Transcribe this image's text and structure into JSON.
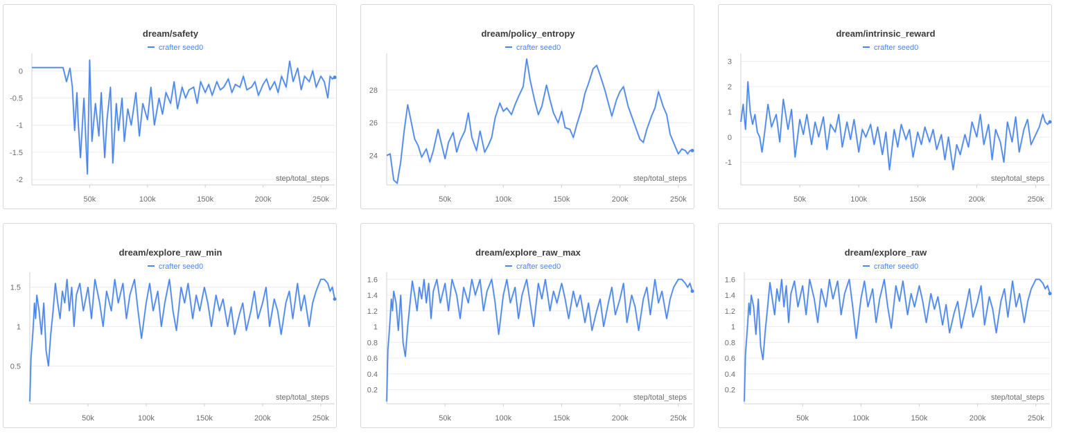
{
  "color": "#4a86e8",
  "chart_data": [
    {
      "type": "line",
      "title": "dream/safety",
      "series_name": "crafter  seed0",
      "xlabel": "step/total_steps",
      "xlim": [
        0,
        262000
      ],
      "ylim": [
        -2.1,
        0.22
      ],
      "x_ticks": [
        "50k",
        "100k",
        "150k",
        "200k",
        "250k"
      ],
      "y_ticks": [
        "0",
        "-0.5",
        "-1",
        "-1.5",
        "-2"
      ],
      "x": [
        0,
        10000,
        20000,
        27000,
        30000,
        33000,
        35000,
        37000,
        39000,
        40000,
        42000,
        45000,
        48000,
        50000,
        52000,
        55000,
        58000,
        60000,
        63000,
        65000,
        68000,
        70000,
        73000,
        75000,
        78000,
        80000,
        83000,
        86000,
        90000,
        93000,
        96000,
        100000,
        103000,
        106000,
        110000,
        113000,
        116000,
        120000,
        123000,
        126000,
        130000,
        133000,
        136000,
        140000,
        143000,
        146000,
        150000,
        153000,
        156000,
        160000,
        163000,
        166000,
        170000,
        173000,
        176000,
        180000,
        183000,
        186000,
        190000,
        193000,
        196000,
        200000,
        203000,
        206000,
        210000,
        213000,
        216000,
        220000,
        223000,
        226000,
        230000,
        233000,
        236000,
        240000,
        243000,
        246000,
        250000,
        253000,
        256000,
        258000,
        260000,
        262000
      ],
      "y": [
        0.06,
        0.06,
        0.06,
        0.06,
        -0.2,
        0.05,
        -0.3,
        -1.1,
        -0.4,
        -0.9,
        -1.6,
        -0.5,
        -1.9,
        0.2,
        -1.3,
        -0.6,
        -1.2,
        -0.4,
        -1.6,
        -0.9,
        -0.3,
        -1.7,
        -0.6,
        -1.1,
        -0.5,
        -1.3,
        -0.7,
        -1.0,
        -0.4,
        -1.2,
        -0.6,
        -0.9,
        -0.3,
        -1.0,
        -0.5,
        -0.8,
        -0.4,
        -0.6,
        -0.2,
        -0.7,
        -0.3,
        -0.5,
        -0.35,
        -0.3,
        -0.6,
        -0.2,
        -0.4,
        -0.25,
        -0.45,
        -0.2,
        -0.35,
        -0.3,
        -0.15,
        -0.4,
        -0.25,
        -0.3,
        -0.1,
        -0.35,
        -0.3,
        -0.2,
        -0.45,
        -0.25,
        -0.15,
        -0.35,
        -0.2,
        -0.4,
        -0.1,
        -0.3,
        0.18,
        -0.2,
        0.05,
        -0.35,
        -0.1,
        -0.2,
        0.0,
        -0.3,
        -0.1,
        -0.2,
        -0.5,
        -0.1,
        -0.15,
        -0.12
      ]
    },
    {
      "type": "line",
      "title": "dream/policy_entropy",
      "series_name": "crafter  seed0",
      "xlabel": "step/total_steps",
      "xlim": [
        0,
        262000
      ],
      "ylim": [
        22.2,
        29.9
      ],
      "x_ticks": [
        "50k",
        "100k",
        "150k",
        "200k",
        "250k"
      ],
      "y_ticks": [
        "24",
        "26",
        "28"
      ],
      "x": [
        0,
        3000,
        6000,
        9000,
        12000,
        15000,
        18000,
        20000,
        24000,
        27000,
        30000,
        34000,
        37000,
        40000,
        44000,
        47000,
        50000,
        53000,
        57000,
        60000,
        63000,
        67000,
        70000,
        73000,
        77000,
        80000,
        84000,
        87000,
        90000,
        93000,
        97000,
        100000,
        103000,
        107000,
        110000,
        113000,
        117000,
        120000,
        123000,
        127000,
        130000,
        133000,
        137000,
        140000,
        143000,
        147000,
        150000,
        153000,
        157000,
        160000,
        163000,
        167000,
        170000,
        173000,
        177000,
        180000,
        183000,
        187000,
        190000,
        193000,
        197000,
        200000,
        203000,
        207000,
        210000,
        213000,
        217000,
        220000,
        223000,
        227000,
        230000,
        233000,
        237000,
        240000,
        243000,
        247000,
        250000,
        253000,
        256000,
        258000,
        260000,
        262000
      ],
      "y": [
        24.0,
        24.1,
        22.5,
        22.3,
        23.6,
        25.5,
        27.1,
        26.4,
        25.0,
        24.6,
        23.9,
        24.4,
        23.6,
        24.3,
        25.6,
        24.7,
        23.8,
        24.8,
        25.4,
        24.2,
        24.9,
        25.5,
        26.6,
        25.1,
        24.3,
        25.5,
        24.2,
        24.6,
        25.1,
        26.3,
        27.2,
        26.7,
        26.9,
        26.5,
        27.1,
        27.6,
        28.2,
        29.9,
        28.6,
        27.3,
        26.5,
        27.0,
        28.3,
        27.4,
        26.6,
        26.0,
        26.7,
        25.7,
        25.6,
        25.1,
        25.9,
        26.8,
        27.8,
        28.4,
        29.3,
        29.5,
        28.9,
        28.0,
        27.2,
        26.4,
        27.4,
        27.9,
        28.2,
        27.0,
        26.4,
        25.8,
        25.0,
        24.8,
        25.6,
        26.4,
        26.9,
        27.9,
        27.0,
        26.5,
        25.3,
        24.6,
        24.1,
        24.4,
        24.3,
        24.1,
        24.3,
        24.3
      ]
    },
    {
      "type": "line",
      "title": "dream/intrinsic_reward",
      "series_name": "crafter  seed0",
      "xlabel": "step/total_steps",
      "xlim": [
        0,
        262000
      ],
      "ylim": [
        -1.9,
        3.1
      ],
      "x_ticks": [
        "50k",
        "100k",
        "150k",
        "200k",
        "250k"
      ],
      "y_ticks": [
        "3",
        "2",
        "1",
        "0",
        "-1"
      ],
      "x": [
        0,
        2000,
        4000,
        6000,
        8000,
        10000,
        12000,
        14000,
        16000,
        18000,
        20000,
        23000,
        26000,
        30000,
        33000,
        36000,
        40000,
        43000,
        46000,
        50000,
        53000,
        56000,
        60000,
        63000,
        66000,
        70000,
        73000,
        76000,
        80000,
        83000,
        86000,
        90000,
        93000,
        96000,
        100000,
        103000,
        106000,
        110000,
        113000,
        116000,
        120000,
        123000,
        126000,
        130000,
        133000,
        136000,
        140000,
        143000,
        146000,
        150000,
        153000,
        156000,
        160000,
        163000,
        166000,
        170000,
        173000,
        176000,
        180000,
        183000,
        186000,
        190000,
        193000,
        196000,
        200000,
        203000,
        206000,
        210000,
        213000,
        216000,
        220000,
        223000,
        226000,
        230000,
        233000,
        236000,
        240000,
        243000,
        246000,
        250000,
        253000,
        256000,
        258000,
        260000,
        262000
      ],
      "y": [
        0.6,
        1.3,
        0.3,
        2.2,
        1.0,
        0.5,
        0.9,
        0.2,
        0.0,
        -0.6,
        0.1,
        1.3,
        0.4,
        0.9,
        -0.2,
        1.5,
        0.3,
        1.1,
        -0.8,
        0.7,
        0.1,
        0.9,
        -0.3,
        0.6,
        0.0,
        0.8,
        -0.5,
        0.5,
        0.2,
        0.9,
        -0.4,
        0.6,
        -0.1,
        0.7,
        -0.6,
        0.3,
        0.0,
        0.5,
        -0.3,
        0.4,
        -0.7,
        0.2,
        -1.3,
        0.3,
        -0.4,
        0.5,
        -0.1,
        0.3,
        -0.8,
        0.2,
        -0.3,
        0.4,
        -0.2,
        0.3,
        -0.5,
        0.1,
        -0.9,
        0.0,
        -1.3,
        -0.3,
        -0.7,
        0.1,
        -0.4,
        0.6,
        0.0,
        0.9,
        -0.3,
        0.5,
        -0.9,
        0.3,
        -0.2,
        -1.0,
        0.6,
        -0.2,
        0.8,
        -0.6,
        0.3,
        0.7,
        -0.3,
        0.1,
        0.4,
        0.9,
        0.6,
        0.5,
        0.6
      ]
    },
    {
      "type": "line",
      "title": "dream/explore_raw_min",
      "series_name": "crafter  seed0",
      "xlabel": "step/total_steps",
      "xlim": [
        0,
        262000
      ],
      "ylim": [
        0.02,
        1.62
      ],
      "x_ticks": [
        "50k",
        "100k",
        "150k",
        "200k",
        "250k"
      ],
      "y_ticks": [
        "1.5",
        "1",
        "0.5"
      ],
      "x": [
        0,
        1000,
        2000,
        3000,
        4000,
        5000,
        6000,
        8000,
        10000,
        12000,
        14000,
        16000,
        18000,
        20000,
        22000,
        24000,
        26000,
        28000,
        30000,
        32000,
        34000,
        36000,
        38000,
        40000,
        43000,
        46000,
        50000,
        53000,
        56000,
        60000,
        63000,
        66000,
        70000,
        73000,
        76000,
        80000,
        83000,
        86000,
        90000,
        93000,
        96000,
        100000,
        103000,
        106000,
        110000,
        113000,
        116000,
        120000,
        123000,
        126000,
        130000,
        133000,
        136000,
        140000,
        143000,
        146000,
        150000,
        153000,
        156000,
        160000,
        163000,
        166000,
        170000,
        173000,
        176000,
        180000,
        183000,
        186000,
        190000,
        193000,
        196000,
        200000,
        203000,
        206000,
        210000,
        213000,
        216000,
        220000,
        223000,
        226000,
        230000,
        233000,
        236000,
        240000,
        243000,
        246000,
        250000,
        253000,
        256000,
        258000,
        260000,
        262000
      ],
      "y": [
        0.05,
        0.6,
        0.8,
        1.0,
        1.3,
        1.1,
        1.4,
        1.2,
        0.9,
        1.3,
        0.7,
        0.5,
        0.9,
        1.2,
        1.55,
        1.3,
        1.1,
        1.45,
        1.3,
        1.6,
        1.2,
        1.5,
        1.0,
        1.4,
        1.55,
        1.2,
        1.5,
        1.1,
        1.6,
        1.3,
        1.0,
        1.45,
        1.2,
        1.6,
        1.3,
        1.55,
        1.1,
        1.4,
        1.6,
        1.2,
        0.85,
        1.3,
        1.55,
        1.2,
        1.45,
        1.0,
        1.3,
        1.6,
        1.2,
        0.95,
        1.5,
        1.3,
        1.55,
        1.1,
        1.4,
        1.2,
        1.5,
        1.3,
        1.0,
        1.4,
        1.2,
        1.35,
        1.0,
        1.25,
        0.9,
        1.15,
        1.3,
        0.95,
        1.2,
        1.45,
        1.1,
        1.3,
        1.5,
        1.0,
        1.35,
        1.2,
        0.9,
        1.3,
        1.45,
        1.1,
        1.55,
        1.2,
        1.4,
        1.0,
        1.3,
        1.45,
        1.6,
        1.6,
        1.55,
        1.45,
        1.5,
        1.35
      ]
    },
    {
      "type": "line",
      "title": "dream/explore_raw_max",
      "series_name": "crafter  seed0",
      "xlabel": "step/total_steps",
      "xlim": [
        0,
        262000
      ],
      "ylim": [
        0.02,
        1.62
      ],
      "x_ticks": [
        "50k",
        "100k",
        "150k",
        "200k",
        "250k"
      ],
      "y_ticks": [
        "1.6",
        "1.4",
        "1.2",
        "1",
        "0.8",
        "0.6",
        "0.4",
        "0.2"
      ],
      "x": [
        0,
        1000,
        2000,
        3000,
        4000,
        5000,
        6000,
        8000,
        10000,
        12000,
        14000,
        16000,
        18000,
        20000,
        22000,
        24000,
        26000,
        28000,
        30000,
        32000,
        34000,
        36000,
        38000,
        40000,
        43000,
        46000,
        50000,
        53000,
        56000,
        60000,
        63000,
        66000,
        70000,
        73000,
        76000,
        80000,
        83000,
        86000,
        90000,
        93000,
        96000,
        100000,
        103000,
        106000,
        110000,
        113000,
        116000,
        120000,
        123000,
        126000,
        130000,
        133000,
        136000,
        140000,
        143000,
        146000,
        150000,
        153000,
        156000,
        160000,
        163000,
        166000,
        170000,
        173000,
        176000,
        180000,
        183000,
        186000,
        190000,
        193000,
        196000,
        200000,
        203000,
        206000,
        210000,
        213000,
        216000,
        220000,
        223000,
        226000,
        230000,
        233000,
        236000,
        240000,
        243000,
        246000,
        250000,
        253000,
        256000,
        258000,
        260000,
        262000
      ],
      "y": [
        0.05,
        0.7,
        0.9,
        1.1,
        1.35,
        1.2,
        1.45,
        1.3,
        0.95,
        1.4,
        0.8,
        0.62,
        1.0,
        1.3,
        1.58,
        1.4,
        1.2,
        1.5,
        1.35,
        1.6,
        1.3,
        1.55,
        1.1,
        1.45,
        1.6,
        1.3,
        1.55,
        1.2,
        1.6,
        1.4,
        1.1,
        1.5,
        1.3,
        1.6,
        1.4,
        1.6,
        1.2,
        1.45,
        1.6,
        1.3,
        0.9,
        1.4,
        1.6,
        1.3,
        1.5,
        1.1,
        1.4,
        1.6,
        1.3,
        1.0,
        1.55,
        1.35,
        1.6,
        1.2,
        1.45,
        1.3,
        1.55,
        1.35,
        1.1,
        1.45,
        1.25,
        1.4,
        1.05,
        1.3,
        0.95,
        1.2,
        1.35,
        1.0,
        1.3,
        1.5,
        1.15,
        1.35,
        1.55,
        1.05,
        1.4,
        1.25,
        0.95,
        1.35,
        1.5,
        1.15,
        1.6,
        1.3,
        1.45,
        1.1,
        1.35,
        1.5,
        1.6,
        1.6,
        1.55,
        1.5,
        1.55,
        1.45
      ]
    },
    {
      "type": "line",
      "title": "dream/explore_raw",
      "series_name": "crafter  seed0",
      "xlabel": "step/total_steps",
      "xlim": [
        0,
        262000
      ],
      "ylim": [
        0.02,
        1.62
      ],
      "x_ticks": [
        "50k",
        "100k",
        "150k",
        "200k",
        "250k"
      ],
      "y_ticks": [
        "1.6",
        "1.4",
        "1.2",
        "1",
        "0.8",
        "0.6",
        "0.4",
        "0.2"
      ],
      "x": [
        0,
        1000,
        2000,
        3000,
        4000,
        5000,
        6000,
        8000,
        10000,
        12000,
        14000,
        16000,
        18000,
        20000,
        22000,
        24000,
        26000,
        28000,
        30000,
        32000,
        34000,
        36000,
        38000,
        40000,
        43000,
        46000,
        50000,
        53000,
        56000,
        60000,
        63000,
        66000,
        70000,
        73000,
        76000,
        80000,
        83000,
        86000,
        90000,
        93000,
        96000,
        100000,
        103000,
        106000,
        110000,
        113000,
        116000,
        120000,
        123000,
        126000,
        130000,
        133000,
        136000,
        140000,
        143000,
        146000,
        150000,
        153000,
        156000,
        160000,
        163000,
        166000,
        170000,
        173000,
        176000,
        180000,
        183000,
        186000,
        190000,
        193000,
        196000,
        200000,
        203000,
        206000,
        210000,
        213000,
        216000,
        220000,
        223000,
        226000,
        230000,
        233000,
        236000,
        240000,
        243000,
        246000,
        250000,
        253000,
        256000,
        258000,
        260000,
        262000
      ],
      "y": [
        0.05,
        0.65,
        0.85,
        1.05,
        1.3,
        1.15,
        1.4,
        1.25,
        0.9,
        1.35,
        0.75,
        0.58,
        0.95,
        1.25,
        1.56,
        1.35,
        1.15,
        1.48,
        1.32,
        1.6,
        1.25,
        1.52,
        1.05,
        1.42,
        1.58,
        1.25,
        1.52,
        1.15,
        1.6,
        1.35,
        1.05,
        1.48,
        1.25,
        1.6,
        1.35,
        1.58,
        1.15,
        1.42,
        1.6,
        1.25,
        0.85,
        1.35,
        1.58,
        1.25,
        1.48,
        1.05,
        1.35,
        1.6,
        1.25,
        0.98,
        1.52,
        1.32,
        1.58,
        1.15,
        1.42,
        1.25,
        1.52,
        1.32,
        1.05,
        1.42,
        1.22,
        1.38,
        1.02,
        1.28,
        0.92,
        1.18,
        1.32,
        0.98,
        1.25,
        1.48,
        1.12,
        1.32,
        1.52,
        1.02,
        1.38,
        1.22,
        0.92,
        1.32,
        1.48,
        1.12,
        1.58,
        1.25,
        1.42,
        1.05,
        1.32,
        1.48,
        1.6,
        1.6,
        1.55,
        1.48,
        1.52,
        1.42
      ]
    }
  ]
}
